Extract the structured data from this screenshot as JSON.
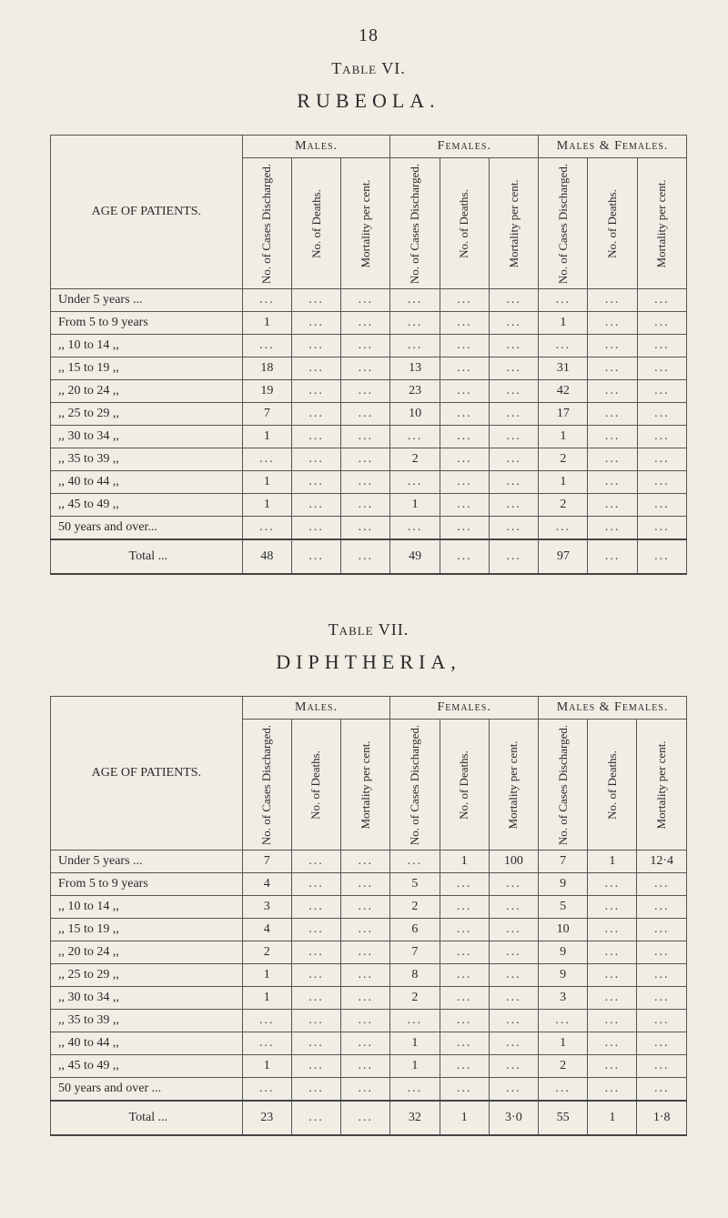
{
  "page_number": "18",
  "table6": {
    "heading": "Table VI.",
    "disease": "RUBEOLA.",
    "age_header": "AGE OF PATIENTS.",
    "groups": [
      "Males.",
      "Females.",
      "Males & Females."
    ],
    "subcols": [
      "No. of Cases Discharged.",
      "No. of Deaths.",
      "Mortality per cent."
    ],
    "row_labels": [
      "Under 5 years      ...",
      "From  5 to  9 years",
      "  ,,   10 to 14   ,,",
      "  ,,   15 to 19   ,,",
      "  ,,   20 to 24   ,,",
      "  ,,   25 to 29   ,,",
      "  ,,   30 to 34   ,,",
      "  ,,   35 to 39   ,,",
      "  ,,   40 to 44   ,,",
      "  ,,   45 to 49   ,,",
      "50 years and over..."
    ],
    "rows": [
      [
        "...",
        "...",
        "...",
        "...",
        "...",
        "...",
        "...",
        "...",
        "..."
      ],
      [
        "1",
        "...",
        "...",
        "...",
        "...",
        "...",
        "1",
        "...",
        "..."
      ],
      [
        "...",
        "...",
        "...",
        "...",
        "...",
        "...",
        "...",
        "...",
        "..."
      ],
      [
        "18",
        "...",
        "...",
        "13",
        "...",
        "...",
        "31",
        "...",
        "..."
      ],
      [
        "19",
        "...",
        "...",
        "23",
        "...",
        "...",
        "42",
        "...",
        "..."
      ],
      [
        "7",
        "...",
        "...",
        "10",
        "...",
        "...",
        "17",
        "...",
        "..."
      ],
      [
        "1",
        "...",
        "...",
        "...",
        "...",
        "...",
        "1",
        "...",
        "..."
      ],
      [
        "...",
        "...",
        "...",
        "2",
        "...",
        "...",
        "2",
        "...",
        "..."
      ],
      [
        "1",
        "...",
        "...",
        "...",
        "...",
        "...",
        "1",
        "...",
        "..."
      ],
      [
        "1",
        "...",
        "...",
        "1",
        "...",
        "...",
        "2",
        "...",
        "..."
      ],
      [
        "...",
        "...",
        "...",
        "...",
        "...",
        "...",
        "...",
        "...",
        "..."
      ]
    ],
    "total_label": "Total      ...",
    "total_row": [
      "48",
      "...",
      "...",
      "49",
      "...",
      "...",
      "97",
      "...",
      "..."
    ]
  },
  "table7": {
    "heading": "Table VII.",
    "disease": "DIPHTHERIA,",
    "age_header": "AGE OF PATIENTS.",
    "groups": [
      "Males.",
      "Females.",
      "Males & Females."
    ],
    "subcols": [
      "No. of Cases Discharged.",
      "No. of Deaths.",
      "Mortality per cent."
    ],
    "row_labels": [
      "Under 5 years      ...",
      "From  5 to  9 years",
      "  ,,   10 to 14   ,,",
      "  ,,   15 to 19   ,,",
      "  ,,   20 to 24   ,,",
      "  ,,   25 to 29   ,,",
      "  ,,   30 to 34   ,,",
      "  ,,   35 to 39   ,,",
      "  ,,   40 to 44   ,,",
      "  ,,   45 to 49   ,,",
      "50 years and over ..."
    ],
    "rows": [
      [
        "7",
        "...",
        "...",
        "...",
        "1",
        "100",
        "7",
        "1",
        "12·4"
      ],
      [
        "4",
        "...",
        "...",
        "5",
        "...",
        "...",
        "9",
        "...",
        "..."
      ],
      [
        "3",
        "...",
        "...",
        "2",
        "...",
        "...",
        "5",
        "...",
        "..."
      ],
      [
        "4",
        "...",
        "...",
        "6",
        "...",
        "...",
        "10",
        "...",
        "..."
      ],
      [
        "2",
        "...",
        "...",
        "7",
        "...",
        "...",
        "9",
        "...",
        "..."
      ],
      [
        "1",
        "...",
        "...",
        "8",
        "...",
        "...",
        "9",
        "...",
        "..."
      ],
      [
        "1",
        "...",
        "...",
        "2",
        "...",
        "...",
        "3",
        "...",
        "..."
      ],
      [
        "...",
        "...",
        "...",
        "...",
        "...",
        "...",
        "...",
        "...",
        "..."
      ],
      [
        "...",
        "...",
        "...",
        "1",
        "...",
        "...",
        "1",
        "...",
        "..."
      ],
      [
        "1",
        "...",
        "...",
        "1",
        "...",
        "...",
        "2",
        "...",
        "..."
      ],
      [
        "...",
        "...",
        "...",
        "...",
        "...",
        "...",
        "...",
        "...",
        "..."
      ]
    ],
    "total_label": "Total      ...",
    "total_row": [
      "23",
      "...",
      "...",
      "32",
      "1",
      "3·0",
      "55",
      "1",
      "1·8"
    ]
  },
  "style": {
    "background": "#f0ede5",
    "text_color": "#2a2a2a",
    "border_color": "#555555",
    "font_family": "Times New Roman",
    "title_fontsize_pt": 18,
    "disease_fontsize_pt": 22,
    "body_fontsize_pt": 14,
    "rot_header_fontsize_pt": 13
  }
}
